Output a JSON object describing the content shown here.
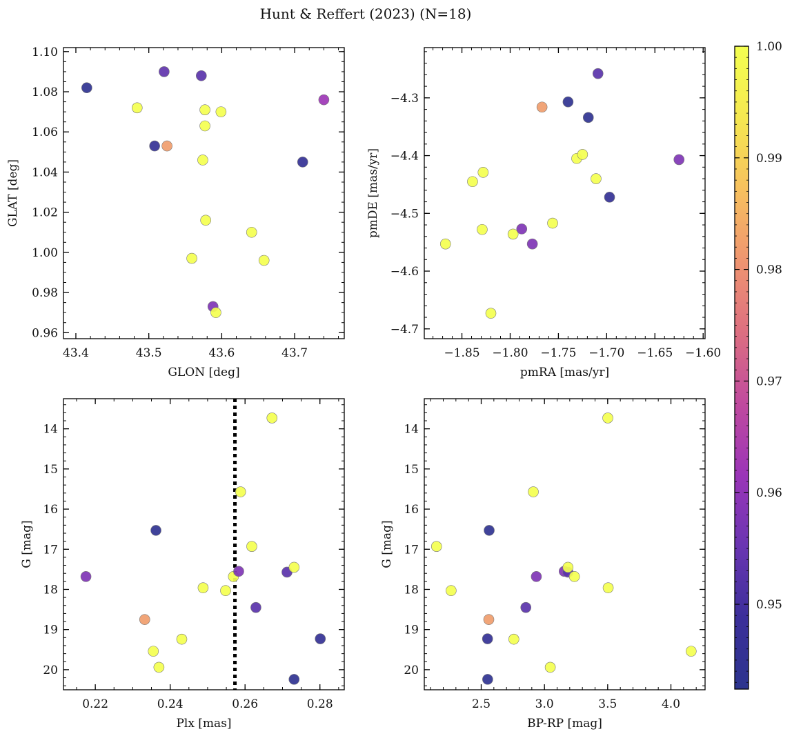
{
  "title": "Hunt & Reffert (2023) (N=18)",
  "colormap": {
    "name": "plasma",
    "min": 0.9424,
    "max": 1.0,
    "ticks": [
      0.95,
      0.96,
      0.97,
      0.98,
      0.99,
      1.0
    ],
    "tick_labels": [
      "0.95",
      "0.96",
      "0.97",
      "0.98",
      "0.99",
      "1.00"
    ],
    "stops": [
      "#2c348e",
      "#3b2f9a",
      "#6a35b2",
      "#9b35b8",
      "#c04a9e",
      "#dd6f80",
      "#ef9570",
      "#f7c15e",
      "#f5e850",
      "#f4ff50"
    ]
  },
  "chart_data": [
    {
      "type": "scatter",
      "xlabel": "GLON [deg]",
      "ylabel": "GLAT [deg]",
      "xlim": [
        43.383,
        43.768
      ],
      "ylim": [
        0.957,
        1.102
      ],
      "yinvert": false,
      "x_ticks": [
        43.4,
        43.5,
        43.6,
        43.7
      ],
      "x_tick_labels": [
        "43.4",
        "43.5",
        "43.6",
        "43.7"
      ],
      "x_minor_step": 0.02,
      "y_ticks": [
        0.96,
        0.98,
        1.0,
        1.02,
        1.04,
        1.06,
        1.08,
        1.1
      ],
      "y_tick_labels": [
        "0.96",
        "0.98",
        "1.00",
        "1.02",
        "1.04",
        "1.06",
        "1.08",
        "1.10"
      ],
      "y_minor_step": 0.005,
      "points": [
        {
          "x": 43.415,
          "y": 1.082,
          "c": 0.944
        },
        {
          "x": 43.484,
          "y": 1.072,
          "c": 1.0
        },
        {
          "x": 43.508,
          "y": 1.053,
          "c": 0.946
        },
        {
          "x": 43.521,
          "y": 1.09,
          "c": 0.954
        },
        {
          "x": 43.525,
          "y": 1.053,
          "c": 0.982
        },
        {
          "x": 43.559,
          "y": 0.997,
          "c": 1.0
        },
        {
          "x": 43.572,
          "y": 1.088,
          "c": 0.953
        },
        {
          "x": 43.574,
          "y": 1.046,
          "c": 1.0
        },
        {
          "x": 43.577,
          "y": 1.071,
          "c": 1.0
        },
        {
          "x": 43.577,
          "y": 1.063,
          "c": 1.0
        },
        {
          "x": 43.578,
          "y": 1.016,
          "c": 1.0
        },
        {
          "x": 43.588,
          "y": 0.973,
          "c": 0.958
        },
        {
          "x": 43.592,
          "y": 0.97,
          "c": 1.0
        },
        {
          "x": 43.599,
          "y": 1.07,
          "c": 1.0
        },
        {
          "x": 43.641,
          "y": 1.01,
          "c": 1.0
        },
        {
          "x": 43.658,
          "y": 0.996,
          "c": 1.0
        },
        {
          "x": 43.711,
          "y": 1.045,
          "c": 0.946
        },
        {
          "x": 43.74,
          "y": 1.076,
          "c": 0.962
        }
      ]
    },
    {
      "type": "scatter",
      "xlabel": "pmRA [mas/yr]",
      "ylabel": "pmDE [mas/yr]",
      "xlim": [
        -1.889,
        -1.598
      ],
      "ylim": [
        -4.717,
        -4.213
      ],
      "yinvert": false,
      "x_ticks": [
        -1.85,
        -1.8,
        -1.75,
        -1.7,
        -1.65,
        -1.6
      ],
      "x_tick_labels": [
        "−1.85",
        "−1.80",
        "−1.75",
        "−1.70",
        "−1.65",
        "−1.60"
      ],
      "x_minor_step": 0.01,
      "y_ticks": [
        -4.7,
        -4.6,
        -4.5,
        -4.4,
        -4.3
      ],
      "y_tick_labels": [
        "−4.7",
        "−4.6",
        "−4.5",
        "−4.4",
        "−4.3"
      ],
      "y_minor_step": 0.02,
      "points": [
        {
          "x": -1.867,
          "y": -4.553,
          "c": 1.0
        },
        {
          "x": -1.839,
          "y": -4.445,
          "c": 1.0
        },
        {
          "x": -1.829,
          "y": -4.528,
          "c": 1.0
        },
        {
          "x": -1.828,
          "y": -4.429,
          "c": 1.0
        },
        {
          "x": -1.82,
          "y": -4.673,
          "c": 1.0
        },
        {
          "x": -1.797,
          "y": -4.536,
          "c": 1.0
        },
        {
          "x": -1.788,
          "y": -4.527,
          "c": 0.958
        },
        {
          "x": -1.777,
          "y": -4.553,
          "c": 0.958
        },
        {
          "x": -1.767,
          "y": -4.316,
          "c": 0.982
        },
        {
          "x": -1.756,
          "y": -4.517,
          "c": 1.0
        },
        {
          "x": -1.74,
          "y": -4.307,
          "c": 0.944
        },
        {
          "x": -1.731,
          "y": -4.405,
          "c": 1.0
        },
        {
          "x": -1.725,
          "y": -4.398,
          "c": 1.0
        },
        {
          "x": -1.719,
          "y": -4.334,
          "c": 0.944
        },
        {
          "x": -1.711,
          "y": -4.44,
          "c": 1.0
        },
        {
          "x": -1.709,
          "y": -4.258,
          "c": 0.953
        },
        {
          "x": -1.697,
          "y": -4.472,
          "c": 0.946
        },
        {
          "x": -1.625,
          "y": -4.407,
          "c": 0.958
        }
      ]
    },
    {
      "type": "scatter",
      "xlabel": "Plx [mas]",
      "ylabel": "G [mag]",
      "xlim": [
        0.2115,
        0.2865
      ],
      "ylim": [
        13.25,
        20.5
      ],
      "yinvert": true,
      "x_ticks": [
        0.22,
        0.24,
        0.26,
        0.28
      ],
      "x_tick_labels": [
        "0.22",
        "0.24",
        "0.26",
        "0.28"
      ],
      "x_minor_step": 0.005,
      "y_ticks": [
        14,
        15,
        16,
        17,
        18,
        19,
        20
      ],
      "y_tick_labels": [
        "14",
        "15",
        "16",
        "17",
        "18",
        "19",
        "20"
      ],
      "y_minor_step": 0.2,
      "vline": {
        "x": 0.2573,
        "style": "dotted"
      },
      "points": [
        {
          "x": 0.2175,
          "y": 17.68,
          "c": 0.958
        },
        {
          "x": 0.2332,
          "y": 18.75,
          "c": 0.982
        },
        {
          "x": 0.2355,
          "y": 19.54,
          "c": 1.0
        },
        {
          "x": 0.2362,
          "y": 16.53,
          "c": 0.944
        },
        {
          "x": 0.237,
          "y": 19.94,
          "c": 1.0
        },
        {
          "x": 0.2431,
          "y": 19.24,
          "c": 1.0
        },
        {
          "x": 0.2488,
          "y": 17.96,
          "c": 1.0
        },
        {
          "x": 0.2548,
          "y": 18.03,
          "c": 1.0
        },
        {
          "x": 0.2569,
          "y": 17.68,
          "c": 1.0
        },
        {
          "x": 0.2583,
          "y": 17.55,
          "c": 0.958
        },
        {
          "x": 0.2588,
          "y": 15.57,
          "c": 1.0
        },
        {
          "x": 0.2618,
          "y": 16.93,
          "c": 1.0
        },
        {
          "x": 0.2629,
          "y": 18.45,
          "c": 0.953
        },
        {
          "x": 0.2672,
          "y": 13.73,
          "c": 1.0
        },
        {
          "x": 0.2712,
          "y": 17.57,
          "c": 0.953
        },
        {
          "x": 0.2731,
          "y": 17.45,
          "c": 1.0
        },
        {
          "x": 0.2731,
          "y": 20.24,
          "c": 0.944
        },
        {
          "x": 0.2801,
          "y": 19.23,
          "c": 0.946
        }
      ]
    },
    {
      "type": "scatter",
      "xlabel": "BP-RP [mag]",
      "ylabel": "G [mag]",
      "xlim": [
        2.05,
        4.27
      ],
      "ylim": [
        13.25,
        20.5
      ],
      "yinvert": true,
      "x_ticks": [
        2.5,
        3.0,
        3.5,
        4.0
      ],
      "x_tick_labels": [
        "2.5",
        "3.0",
        "3.5",
        "4.0"
      ],
      "x_minor_step": 0.1,
      "y_ticks": [
        14,
        15,
        16,
        17,
        18,
        19,
        20
      ],
      "y_tick_labels": [
        "14",
        "15",
        "16",
        "17",
        "18",
        "19",
        "20"
      ],
      "y_minor_step": 0.2,
      "points": [
        {
          "x": 2.147,
          "y": 16.93,
          "c": 1.0
        },
        {
          "x": 2.262,
          "y": 18.03,
          "c": 1.0
        },
        {
          "x": 2.55,
          "y": 19.23,
          "c": 0.946
        },
        {
          "x": 2.551,
          "y": 20.24,
          "c": 0.944
        },
        {
          "x": 2.56,
          "y": 18.75,
          "c": 0.982
        },
        {
          "x": 2.563,
          "y": 16.53,
          "c": 0.944
        },
        {
          "x": 2.758,
          "y": 19.24,
          "c": 1.0
        },
        {
          "x": 2.853,
          "y": 18.45,
          "c": 0.953
        },
        {
          "x": 2.912,
          "y": 15.57,
          "c": 1.0
        },
        {
          "x": 2.936,
          "y": 17.68,
          "c": 0.958
        },
        {
          "x": 3.046,
          "y": 19.94,
          "c": 1.0
        },
        {
          "x": 3.156,
          "y": 17.55,
          "c": 0.958
        },
        {
          "x": 3.186,
          "y": 17.57,
          "c": 0.953
        },
        {
          "x": 3.186,
          "y": 17.45,
          "c": 1.0
        },
        {
          "x": 3.237,
          "y": 17.68,
          "c": 1.0
        },
        {
          "x": 3.501,
          "y": 13.73,
          "c": 1.0
        },
        {
          "x": 3.504,
          "y": 17.96,
          "c": 1.0
        },
        {
          "x": 4.16,
          "y": 19.54,
          "c": 1.0
        }
      ]
    }
  ]
}
